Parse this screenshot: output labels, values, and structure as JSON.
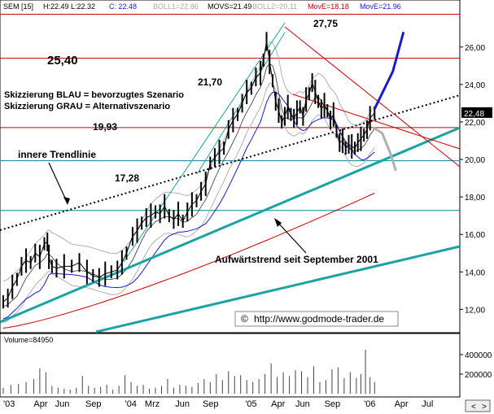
{
  "chart_data": {
    "type": "line",
    "header": {
      "symbol": "SEM [15]",
      "hl": "H:22.49 L:22.32",
      "close": "C: 22.48",
      "boll1": "BOLL1=22.86",
      "movs": "MOVS=21.49",
      "boll2": "BOLL2=20.11",
      "move1": "MovE=18.18",
      "move2": "MovE=21.96"
    },
    "ylim": [
      10.8,
      27.9
    ],
    "y_ticks": [
      12.0,
      14.0,
      16.0,
      18.0,
      20.0,
      22.0,
      24.0,
      26.0
    ],
    "y_tick_labels": [
      "12,00",
      "14,00",
      "16,00",
      "18,00",
      "20,00",
      "22,00",
      "24,00",
      "26,00"
    ],
    "x_labels": [
      "'03",
      "Apr",
      "Jun",
      "Sep",
      "'04",
      "Mrz",
      "Jun",
      "Sep",
      "'05",
      "Apr",
      "Jun",
      "Sep",
      "'06",
      "Apr",
      "Jul"
    ],
    "x_label_x_index": [
      0,
      40,
      68,
      108,
      160,
      186,
      226,
      262,
      318,
      352,
      384,
      422,
      474,
      514,
      550
    ],
    "last_price_label": "22,48",
    "horizontal_levels": [
      {
        "value": 27.75,
        "label": "27,75",
        "color": "#cc0000"
      },
      {
        "value": 25.4,
        "label": "25,40",
        "color": "#cc0000"
      },
      {
        "value": 21.7,
        "label": "21,70",
        "color": "#cc0000"
      },
      {
        "value": 19.93,
        "label": "19,93",
        "color": "#008b8b"
      },
      {
        "value": 17.28,
        "label": "17,28",
        "color": "#008b8b"
      }
    ],
    "annotations": {
      "legend_blue": "Skizzierung BLAU = bevorzugtes Szenario",
      "legend_gray": "Skizzierung GRAU = Alternativszenario",
      "inner_trendline": "innere Trendlinie",
      "uptrend": "Aufwärtstrend seit September 2001",
      "copyright_symbol": "©",
      "url": "http://www.godmode-trader.de"
    },
    "price_series": [
      [
        0,
        12.4
      ],
      [
        6,
        12.6
      ],
      [
        12,
        13.2
      ],
      [
        18,
        13.6
      ],
      [
        24,
        14.3
      ],
      [
        30,
        14.6
      ],
      [
        36,
        14.5
      ],
      [
        42,
        15.0
      ],
      [
        48,
        14.8
      ],
      [
        54,
        15.5
      ],
      [
        58,
        15.6
      ],
      [
        60,
        14.8
      ],
      [
        64,
        14.3
      ],
      [
        70,
        14.2
      ],
      [
        80,
        14.3
      ],
      [
        90,
        14.3
      ],
      [
        100,
        14.5
      ],
      [
        110,
        14.0
      ],
      [
        118,
        13.8
      ],
      [
        126,
        13.7
      ],
      [
        134,
        13.9
      ],
      [
        142,
        14.0
      ],
      [
        150,
        14.1
      ],
      [
        156,
        14.5
      ],
      [
        162,
        15.0
      ],
      [
        170,
        15.9
      ],
      [
        176,
        16.2
      ],
      [
        182,
        16.6
      ],
      [
        188,
        16.9
      ],
      [
        194,
        17.0
      ],
      [
        200,
        17.2
      ],
      [
        206,
        17.1
      ],
      [
        212,
        17.5
      ],
      [
        218,
        17.0
      ],
      [
        224,
        16.8
      ],
      [
        230,
        17.1
      ],
      [
        236,
        16.7
      ],
      [
        242,
        17.2
      ],
      [
        248,
        17.6
      ],
      [
        254,
        17.8
      ],
      [
        260,
        18.3
      ],
      [
        266,
        18.7
      ],
      [
        272,
        19.8
      ],
      [
        278,
        20.1
      ],
      [
        284,
        20.4
      ],
      [
        290,
        20.6
      ],
      [
        296,
        21.6
      ],
      [
        302,
        22.1
      ],
      [
        308,
        22.4
      ],
      [
        314,
        23.0
      ],
      [
        320,
        23.6
      ],
      [
        326,
        23.8
      ],
      [
        332,
        24.4
      ],
      [
        338,
        24.6
      ],
      [
        342,
        25.3
      ],
      [
        346,
        26.3
      ],
      [
        350,
        25.2
      ],
      [
        354,
        24.2
      ],
      [
        358,
        23.1
      ],
      [
        362,
        22.6
      ],
      [
        366,
        22.0
      ],
      [
        370,
        22.3
      ],
      [
        374,
        22.8
      ],
      [
        378,
        22.4
      ],
      [
        382,
        22.2
      ],
      [
        386,
        22.5
      ],
      [
        390,
        22.8
      ],
      [
        394,
        22.3
      ],
      [
        398,
        23.2
      ],
      [
        402,
        23.5
      ],
      [
        406,
        24.1
      ],
      [
        410,
        23.6
      ],
      [
        414,
        23.1
      ],
      [
        418,
        22.7
      ],
      [
        422,
        22.9
      ],
      [
        426,
        22.6
      ],
      [
        430,
        22.1
      ],
      [
        434,
        22.4
      ],
      [
        438,
        21.5
      ],
      [
        442,
        20.9
      ],
      [
        446,
        21.0
      ],
      [
        450,
        20.6
      ],
      [
        454,
        20.8
      ],
      [
        458,
        20.7
      ],
      [
        462,
        20.6
      ],
      [
        466,
        20.9
      ],
      [
        470,
        21.1
      ],
      [
        474,
        21.3
      ],
      [
        478,
        21.6
      ],
      [
        482,
        22.2
      ],
      [
        488,
        22.48
      ]
    ],
    "volume": {
      "label": "Volume=84950",
      "ylim": [
        0,
        500000
      ],
      "ticks": [
        200000,
        400000
      ],
      "tick_labels": [
        "200000",
        "400000"
      ],
      "bars": [
        [
          0,
          60000
        ],
        [
          10,
          90000
        ],
        [
          20,
          100000
        ],
        [
          30,
          120000
        ],
        [
          40,
          150000
        ],
        [
          48,
          260000
        ],
        [
          56,
          220000
        ],
        [
          64,
          80000
        ],
        [
          72,
          60000
        ],
        [
          80,
          50000
        ],
        [
          88,
          40000
        ],
        [
          96,
          60000
        ],
        [
          104,
          180000
        ],
        [
          112,
          80000
        ],
        [
          120,
          60000
        ],
        [
          128,
          70000
        ],
        [
          136,
          90000
        ],
        [
          144,
          40000
        ],
        [
          152,
          80000
        ],
        [
          160,
          190000
        ],
        [
          168,
          120000
        ],
        [
          176,
          80000
        ],
        [
          184,
          90000
        ],
        [
          192,
          50000
        ],
        [
          200,
          60000
        ],
        [
          208,
          80000
        ],
        [
          216,
          150000
        ],
        [
          224,
          60000
        ],
        [
          232,
          90000
        ],
        [
          240,
          80000
        ],
        [
          248,
          70000
        ],
        [
          256,
          110000
        ],
        [
          264,
          150000
        ],
        [
          272,
          120000
        ],
        [
          280,
          200000
        ],
        [
          288,
          140000
        ],
        [
          296,
          230000
        ],
        [
          304,
          180000
        ],
        [
          312,
          190000
        ],
        [
          320,
          140000
        ],
        [
          328,
          120000
        ],
        [
          336,
          150000
        ],
        [
          344,
          200000
        ],
        [
          352,
          310000
        ],
        [
          360,
          170000
        ],
        [
          368,
          220000
        ],
        [
          376,
          180000
        ],
        [
          384,
          240000
        ],
        [
          392,
          230000
        ],
        [
          400,
          170000
        ],
        [
          408,
          280000
        ],
        [
          416,
          120000
        ],
        [
          424,
          140000
        ],
        [
          432,
          250000
        ],
        [
          440,
          270000
        ],
        [
          448,
          160000
        ],
        [
          456,
          220000
        ],
        [
          464,
          160000
        ],
        [
          470,
          200000
        ],
        [
          476,
          450000
        ],
        [
          482,
          170000
        ],
        [
          488,
          120000
        ]
      ]
    }
  }
}
